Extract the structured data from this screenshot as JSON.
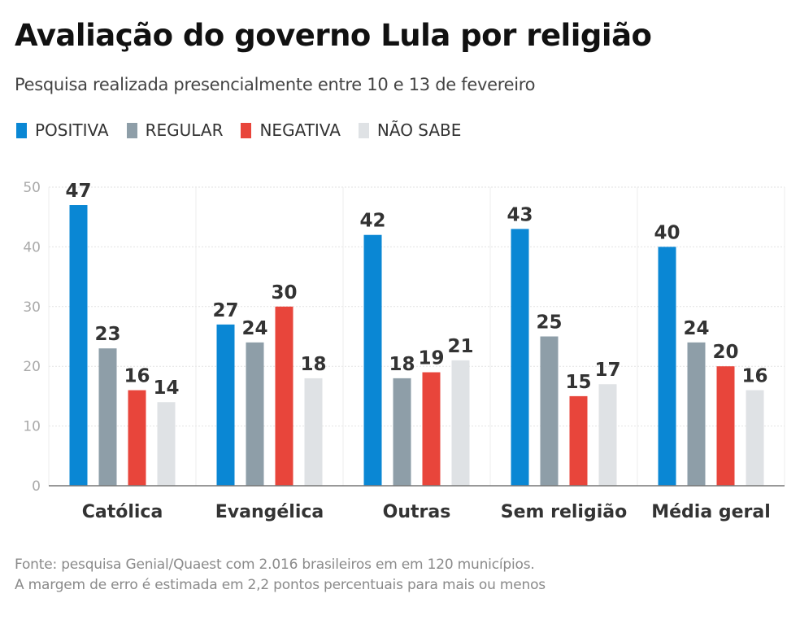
{
  "header": {
    "title": "Avaliação do governo Lula por religião",
    "subtitle": "Pesquisa realizada presencialmente entre 10 e 13 de fevereiro"
  },
  "legend": [
    {
      "label": "POSITIVA",
      "color": "#0a87d4"
    },
    {
      "label": "REGULAR",
      "color": "#8e9ea8"
    },
    {
      "label": "NEGATIVA",
      "color": "#e8453b"
    },
    {
      "label": "NÃO SABE",
      "color": "#dfe2e5"
    }
  ],
  "footer": {
    "line1": "Fonte: pesquisa Genial/Quaest com 2.016 brasileiros em em 120 municípios.",
    "line2": "A margem de erro é estimada em 2,2 pontos percentuais para mais ou menos"
  },
  "chart_data": {
    "type": "bar",
    "title": "Avaliação do governo Lula por religião",
    "subtitle": "Pesquisa realizada presencialmente entre 10 e 13 de fevereiro",
    "xlabel": "",
    "ylabel": "",
    "ylim": [
      0,
      50
    ],
    "yticks": [
      0,
      10,
      20,
      30,
      40,
      50
    ],
    "grid": true,
    "legend_position": "top-left",
    "categories": [
      "Católica",
      "Evangélica",
      "Outras",
      "Sem religião",
      "Média geral"
    ],
    "series": [
      {
        "name": "POSITIVA",
        "color": "#0a87d4",
        "values": [
          47,
          27,
          42,
          43,
          40
        ]
      },
      {
        "name": "REGULAR",
        "color": "#8e9ea8",
        "values": [
          23,
          24,
          18,
          25,
          24
        ]
      },
      {
        "name": "NEGATIVA",
        "color": "#e8453b",
        "values": [
          16,
          30,
          19,
          15,
          20
        ]
      },
      {
        "name": "NÃO SABE",
        "color": "#dfe2e5",
        "values": [
          14,
          18,
          21,
          17,
          16
        ]
      }
    ]
  }
}
